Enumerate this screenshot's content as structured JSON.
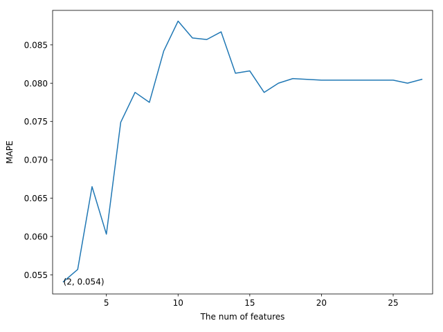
{
  "chart_data": {
    "type": "line",
    "xlabel": "The num of features",
    "ylabel": "MAPE",
    "xlim": [
      1.25,
      27.75
    ],
    "ylim": [
      0.0525,
      0.0895
    ],
    "xticks": [
      5,
      10,
      15,
      20,
      25
    ],
    "xtick_labels": [
      "5",
      "10",
      "15",
      "20",
      "25"
    ],
    "yticks": [
      0.055,
      0.06,
      0.065,
      0.07,
      0.075,
      0.08,
      0.085
    ],
    "ytick_labels": [
      "0.055",
      "0.060",
      "0.065",
      "0.070",
      "0.075",
      "0.080",
      "0.085"
    ],
    "grid": false,
    "series": [
      {
        "color": "#1f77b4",
        "x": [
          2,
          3,
          4,
          5,
          6,
          7,
          8,
          9,
          10,
          11,
          12,
          13,
          14,
          15,
          16,
          17,
          18,
          19,
          20,
          21,
          22,
          23,
          24,
          25,
          26,
          27
        ],
        "y": [
          0.0541,
          0.0557,
          0.0665,
          0.0603,
          0.0749,
          0.0788,
          0.0775,
          0.0842,
          0.0881,
          0.0859,
          0.0857,
          0.0867,
          0.0813,
          0.0816,
          0.0788,
          0.08,
          0.0806,
          0.0805,
          0.0804,
          0.0804,
          0.0804,
          0.0804,
          0.0804,
          0.0804,
          0.08,
          0.0805
        ]
      }
    ],
    "annotations": [
      {
        "text": "(2, 0.054)",
        "x": 2,
        "y": 0.0541
      }
    ]
  }
}
